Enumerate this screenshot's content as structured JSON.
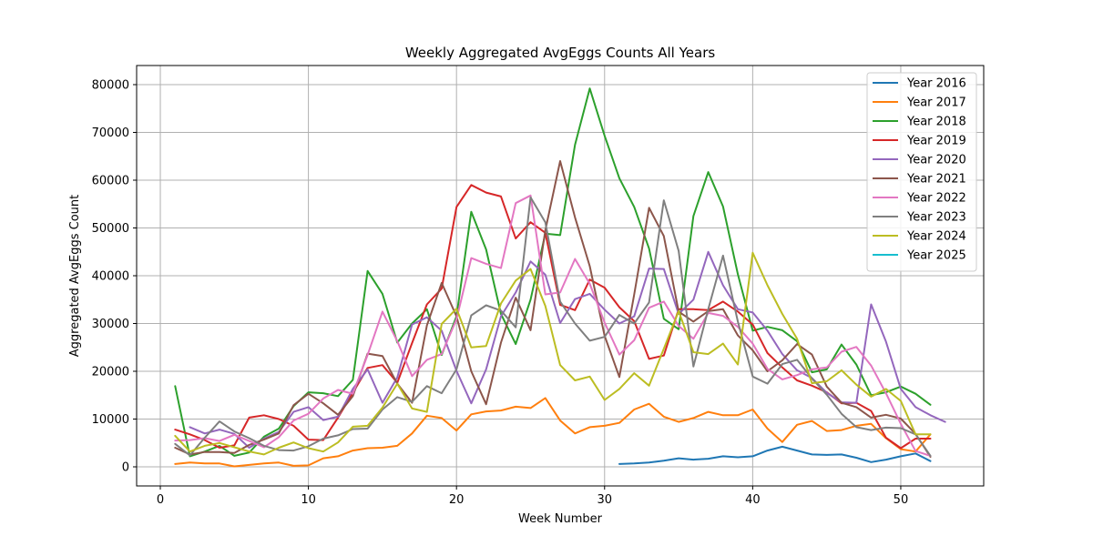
{
  "chart_data": {
    "type": "line",
    "title": "Weekly Aggregated AvgEggs Counts All Years",
    "xlabel": "Week Number",
    "ylabel": "Aggregated AvgEggs Count",
    "xlim": [
      -1.6,
      55.6
    ],
    "ylim": [
      -4000,
      84000
    ],
    "xticks": [
      0,
      10,
      20,
      30,
      40,
      50
    ],
    "yticks": [
      0,
      10000,
      20000,
      30000,
      40000,
      50000,
      60000,
      70000,
      80000
    ],
    "grid": true,
    "legend_position": "top-right",
    "series": [
      {
        "name": "Year 2016",
        "color": "#1f77b4",
        "x": [
          31,
          32,
          33,
          34,
          35,
          36,
          37,
          38,
          39,
          40,
          41,
          42,
          43,
          44,
          45,
          46,
          47,
          48,
          49,
          50,
          51,
          52
        ],
        "values": [
          600,
          700,
          900,
          1300,
          1800,
          1500,
          1700,
          2200,
          2000,
          2200,
          3400,
          4200,
          3400,
          2600,
          2500,
          2600,
          1900,
          1000,
          1500,
          2200,
          2800,
          1200
        ]
      },
      {
        "name": "Year 2017",
        "color": "#ff7f0e",
        "x": [
          1,
          2,
          3,
          4,
          5,
          6,
          7,
          8,
          9,
          10,
          11,
          12,
          13,
          14,
          15,
          16,
          17,
          18,
          19,
          20,
          21,
          22,
          23,
          24,
          25,
          26,
          27,
          28,
          29,
          30,
          31,
          32,
          33,
          34,
          35,
          36,
          37,
          38,
          39,
          40,
          41,
          42,
          43,
          44,
          45,
          46,
          47,
          48,
          49,
          50,
          51,
          52
        ],
        "values": [
          600,
          900,
          700,
          700,
          100,
          400,
          700,
          900,
          200,
          300,
          1800,
          2200,
          3400,
          3900,
          4000,
          4400,
          7000,
          10700,
          10200,
          7600,
          11000,
          11600,
          11800,
          12600,
          12300,
          14400,
          9700,
          7000,
          8300,
          8600,
          9200,
          12000,
          13200,
          10500,
          9400,
          10200,
          11500,
          10800,
          10800,
          12000,
          8000,
          5200,
          8800,
          9600,
          7500,
          7700,
          8600,
          9000,
          6000,
          3700,
          3200,
          6800
        ]
      },
      {
        "name": "Year 2018",
        "color": "#2ca02c",
        "x": [
          1,
          2,
          3,
          4,
          5,
          6,
          7,
          8,
          9,
          10,
          11,
          12,
          13,
          14,
          15,
          16,
          17,
          18,
          19,
          20,
          21,
          22,
          23,
          24,
          25,
          26,
          27,
          28,
          29,
          30,
          31,
          32,
          33,
          34,
          35,
          36,
          37,
          38,
          39,
          40,
          41,
          42,
          43,
          44,
          45,
          46,
          47,
          48,
          49,
          50,
          51,
          52
        ],
        "values": [
          16900,
          2200,
          3200,
          4400,
          2300,
          3000,
          6300,
          8000,
          12700,
          15600,
          15400,
          14800,
          18200,
          41000,
          36200,
          26000,
          30000,
          33000,
          23400,
          31500,
          53400,
          45500,
          32000,
          25700,
          35000,
          48800,
          48500,
          67400,
          79200,
          69300,
          60400,
          54400,
          45700,
          31000,
          28800,
          52500,
          61700,
          54500,
          40300,
          28500,
          29300,
          28600,
          26300,
          19800,
          20400,
          25600,
          21400,
          15000,
          15600,
          16800,
          15300,
          13000
        ]
      },
      {
        "name": "Year 2019",
        "color": "#d62728",
        "x": [
          1,
          2,
          3,
          4,
          5,
          6,
          7,
          8,
          9,
          10,
          11,
          12,
          13,
          14,
          15,
          16,
          17,
          18,
          19,
          20,
          21,
          22,
          23,
          24,
          25,
          26,
          27,
          28,
          29,
          30,
          31,
          32,
          33,
          34,
          35,
          36,
          37,
          38,
          39,
          40,
          41,
          42,
          43,
          44,
          45,
          46,
          47,
          48,
          49,
          50,
          51,
          52
        ],
        "values": [
          7800,
          6800,
          5600,
          4000,
          4500,
          10300,
          10800,
          10000,
          8600,
          5700,
          5600,
          10300,
          15500,
          20700,
          21300,
          17600,
          25900,
          34000,
          37300,
          54400,
          59000,
          57400,
          56600,
          47800,
          51200,
          49000,
          33900,
          32800,
          39200,
          37500,
          33400,
          30500,
          22600,
          23300,
          33000,
          33000,
          32800,
          34600,
          32500,
          29800,
          23800,
          20800,
          18100,
          17000,
          15600,
          13300,
          13400,
          11700,
          6100,
          3900,
          5900,
          5900
        ]
      },
      {
        "name": "Year 2020",
        "color": "#9467bd",
        "x": [
          2,
          3,
          4,
          5,
          6,
          7,
          8,
          9,
          10,
          11,
          12,
          13,
          14,
          15,
          16,
          17,
          18,
          19,
          20,
          21,
          22,
          23,
          24,
          25,
          26,
          27,
          28,
          29,
          30,
          31,
          32,
          33,
          34,
          35,
          36,
          37,
          38,
          39,
          40,
          41,
          42,
          43,
          44,
          45,
          46,
          47,
          48,
          49,
          50,
          51,
          52,
          53
        ],
        "values": [
          8300,
          7000,
          7800,
          6900,
          4000,
          5900,
          7300,
          11500,
          12500,
          9800,
          10500,
          16300,
          20400,
          13400,
          18700,
          29800,
          31300,
          28500,
          20100,
          13300,
          20400,
          31500,
          36500,
          43000,
          40200,
          30100,
          35100,
          36200,
          32900,
          30000,
          31500,
          41500,
          41400,
          32000,
          35000,
          45000,
          38000,
          33000,
          32300,
          28500,
          23600,
          20200,
          18600,
          15500,
          13500,
          13400,
          34000,
          26200,
          16300,
          12500,
          10800,
          9400
        ]
      },
      {
        "name": "Year 2021",
        "color": "#8c564b",
        "x": [
          1,
          2,
          3,
          4,
          5,
          6,
          7,
          8,
          9,
          10,
          11,
          12,
          13,
          14,
          15,
          16,
          17,
          18,
          19,
          20,
          21,
          22,
          23,
          24,
          25,
          26,
          27,
          28,
          29,
          30,
          31,
          32,
          33,
          34,
          35,
          36,
          37,
          38,
          39,
          40,
          41,
          42,
          43,
          44,
          45,
          46,
          47,
          48,
          49,
          50,
          51,
          52
        ],
        "values": [
          4000,
          2600,
          3100,
          3100,
          2900,
          4600,
          5700,
          7000,
          12900,
          15300,
          13300,
          10900,
          14800,
          23700,
          23200,
          17400,
          13400,
          29600,
          38500,
          31500,
          20000,
          13100,
          26000,
          35400,
          28600,
          49500,
          64000,
          52200,
          42000,
          27400,
          18800,
          36100,
          54200,
          48300,
          32500,
          30400,
          32600,
          33000,
          27500,
          24400,
          20000,
          22300,
          25700,
          23500,
          16800,
          13400,
          12500,
          10300,
          10900,
          10100,
          6900,
          2100
        ]
      },
      {
        "name": "Year 2022",
        "color": "#e377c2",
        "x": [
          1,
          2,
          3,
          4,
          5,
          6,
          7,
          8,
          9,
          10,
          11,
          12,
          13,
          14,
          15,
          16,
          17,
          18,
          19,
          20,
          21,
          22,
          23,
          24,
          25,
          26,
          27,
          28,
          29,
          30,
          31,
          32,
          33,
          34,
          35,
          36,
          37,
          38,
          39,
          40,
          41,
          42,
          43,
          44,
          45,
          46,
          47,
          48,
          49,
          50,
          51,
          52
        ],
        "values": [
          5500,
          5600,
          6000,
          5400,
          6700,
          5400,
          4100,
          6200,
          9700,
          11100,
          14300,
          16100,
          15300,
          23400,
          32500,
          26300,
          19000,
          22400,
          23600,
          30900,
          43700,
          42500,
          41600,
          55200,
          56800,
          36100,
          36500,
          43500,
          38300,
          30200,
          23500,
          26500,
          33300,
          34600,
          29500,
          26800,
          32200,
          31600,
          29300,
          25800,
          20500,
          18300,
          19200,
          20400,
          20800,
          24100,
          25100,
          21200,
          15400,
          9000,
          3300,
          2300
        ]
      },
      {
        "name": "Year 2023",
        "color": "#7f7f7f",
        "x": [
          1,
          2,
          3,
          4,
          5,
          6,
          7,
          8,
          9,
          10,
          11,
          12,
          13,
          14,
          15,
          16,
          17,
          18,
          19,
          20,
          21,
          22,
          23,
          24,
          25,
          26,
          27,
          28,
          29,
          30,
          31,
          32,
          33,
          34,
          35,
          36,
          37,
          38,
          39,
          40,
          41,
          42,
          43,
          44,
          45,
          46,
          47,
          48,
          49,
          50,
          51,
          52
        ],
        "values": [
          4800,
          2400,
          6100,
          9500,
          7400,
          6000,
          4400,
          3500,
          3400,
          4300,
          5900,
          6600,
          7900,
          8000,
          12000,
          14600,
          13600,
          16900,
          15400,
          20400,
          31700,
          33800,
          32700,
          29200,
          56400,
          51200,
          34600,
          30000,
          26400,
          27200,
          31800,
          30000,
          34400,
          55800,
          45200,
          21000,
          33000,
          44200,
          30400,
          18900,
          17400,
          21500,
          22400,
          18500,
          15100,
          11100,
          8300,
          7700,
          8200,
          8100,
          6800,
          2300
        ]
      },
      {
        "name": "Year 2024",
        "color": "#bcbd22",
        "x": [
          1,
          2,
          3,
          4,
          5,
          6,
          7,
          8,
          9,
          10,
          11,
          12,
          13,
          14,
          15,
          16,
          17,
          18,
          19,
          20,
          21,
          22,
          23,
          24,
          25,
          26,
          27,
          28,
          29,
          30,
          31,
          32,
          33,
          34,
          35,
          36,
          37,
          38,
          39,
          40,
          41,
          42,
          43,
          44,
          45,
          46,
          47,
          48,
          49,
          50,
          51,
          52
        ],
        "values": [
          6500,
          3200,
          4400,
          5000,
          4100,
          3200,
          2600,
          4000,
          5100,
          3900,
          3200,
          5100,
          8400,
          8600,
          12400,
          17400,
          12200,
          11500,
          29900,
          33100,
          25000,
          25300,
          34200,
          39000,
          41400,
          33700,
          21300,
          18100,
          18900,
          14000,
          16300,
          19600,
          17000,
          24700,
          32600,
          24000,
          23600,
          25800,
          21400,
          44800,
          38000,
          32000,
          26800,
          17500,
          17900,
          20200,
          17200,
          14700,
          16300,
          13800,
          6800,
          6800
        ]
      },
      {
        "name": "Year 2025",
        "color": "#17becf",
        "x": [],
        "values": []
      }
    ]
  }
}
